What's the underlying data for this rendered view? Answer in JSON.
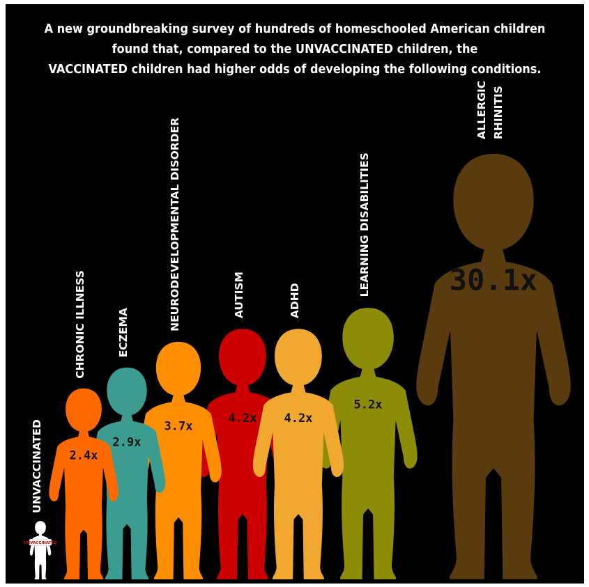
{
  "headline": {
    "line1": "A new groundbreaking survey of hundreds of homeschooled American children",
    "line2": "found that, compared to the UNVACCINATED children, the",
    "line3": "VACCINATED children had higher odds of developing the following conditions."
  },
  "chart_data": {
    "type": "bar",
    "title": "",
    "categories": [
      "UNVACCINATED",
      "CHRONIC ILLNESS",
      "ECZEMA",
      "NEURODEVELOPMENTAL DISORDER",
      "AUTISM",
      "ADHD",
      "LEARNING DISABILITIES",
      "ALLERGIC RHINITIS"
    ],
    "values": [
      1,
      2.4,
      2.9,
      3.7,
      4.2,
      4.2,
      5.2,
      30.1
    ],
    "value_labels": [
      "",
      "2.4x",
      "2.9x",
      "3.7x",
      "4.2x",
      "4.2x",
      "5.2x",
      "30.1x"
    ],
    "badge_text": "UNVACCINATED",
    "colors": [
      "#ffffff",
      "#ff6a00",
      "#3c9c90",
      "#ff8f00",
      "#cc0000",
      "#f0a830",
      "#8d8c09",
      "#5a3b0f"
    ],
    "legend": "none",
    "grid": false
  }
}
